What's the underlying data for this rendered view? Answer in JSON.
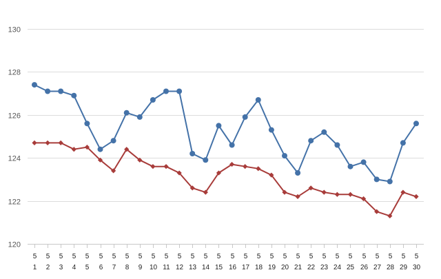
{
  "chart_data": {
    "type": "line",
    "title": "",
    "xlabel": "",
    "ylabel": "",
    "categories": [
      [
        "5",
        "1"
      ],
      [
        "5",
        "2"
      ],
      [
        "5",
        "3"
      ],
      [
        "5",
        "4"
      ],
      [
        "5",
        "5"
      ],
      [
        "5",
        "6"
      ],
      [
        "5",
        "7"
      ],
      [
        "5",
        "8"
      ],
      [
        "5",
        "9"
      ],
      [
        "5",
        "10"
      ],
      [
        "5",
        "11"
      ],
      [
        "5",
        "12"
      ],
      [
        "5",
        "13"
      ],
      [
        "5",
        "14"
      ],
      [
        "5",
        "15"
      ],
      [
        "5",
        "16"
      ],
      [
        "5",
        "17"
      ],
      [
        "5",
        "18"
      ],
      [
        "5",
        "19"
      ],
      [
        "5",
        "20"
      ],
      [
        "5",
        "21"
      ],
      [
        "5",
        "22"
      ],
      [
        "5",
        "23"
      ],
      [
        "5",
        "24"
      ],
      [
        "5",
        "25"
      ],
      [
        "5",
        "26"
      ],
      [
        "5",
        "27"
      ],
      [
        "5",
        "28"
      ],
      [
        "5",
        "29"
      ],
      [
        "5",
        "30"
      ]
    ],
    "ylim": [
      120,
      130
    ],
    "yticks": [
      120,
      122,
      124,
      126,
      128,
      130
    ],
    "grid": true,
    "series": [
      {
        "color": "#4472a8",
        "marker": "circle",
        "values": [
          127.4,
          127.1,
          127.1,
          126.9,
          125.6,
          124.4,
          124.8,
          126.1,
          125.9,
          126.7,
          127.1,
          127.1,
          124.2,
          123.9,
          125.5,
          124.6,
          125.9,
          126.7,
          125.3,
          124.1,
          123.3,
          124.8,
          125.2,
          124.6,
          123.6,
          123.8,
          123.0,
          122.9,
          124.7,
          125.6
        ]
      },
      {
        "color": "#a83c3a",
        "marker": "diamond",
        "values": [
          124.7,
          124.7,
          124.7,
          124.4,
          124.5,
          123.9,
          123.4,
          124.4,
          123.9,
          123.6,
          123.6,
          123.3,
          122.6,
          122.4,
          123.3,
          123.7,
          123.6,
          123.5,
          123.2,
          122.4,
          122.2,
          122.6,
          122.4,
          122.3,
          122.3,
          122.1,
          121.5,
          121.3,
          122.4,
          122.2
        ]
      }
    ]
  }
}
